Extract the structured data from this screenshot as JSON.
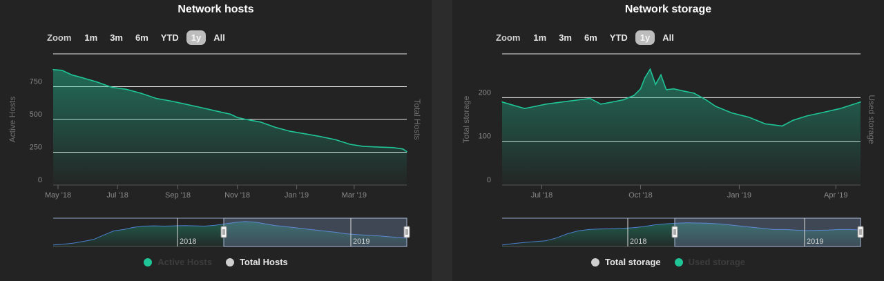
{
  "colors": {
    "accent": "#1fc497",
    "background": "#232323",
    "gridline": "#e8e8e8",
    "axis_text": "#8a8a8a",
    "navigator_line": "#4a7fd0",
    "hidden_legend": "#3c3c3c",
    "total_dot": "#cfcfcf"
  },
  "zoom": {
    "label": "Zoom",
    "buttons": [
      "1m",
      "3m",
      "6m",
      "YTD",
      "1y",
      "All"
    ],
    "active": "1y"
  },
  "hosts_panel": {
    "title": "Network hosts",
    "legend": [
      {
        "label": "Active Hosts",
        "color": "#1fc497",
        "visible": false
      },
      {
        "label": "Total Hosts",
        "color": "#cfcfcf",
        "visible": true
      }
    ],
    "navigator_labels": [
      "2018",
      "2019"
    ]
  },
  "storage_panel": {
    "title": "Network storage",
    "legend": [
      {
        "label": "Total storage",
        "color": "#cfcfcf",
        "visible": true
      },
      {
        "label": "Used storage",
        "color": "#1fc497",
        "visible": false
      }
    ],
    "navigator_labels": [
      "2018",
      "2019"
    ]
  },
  "chart_data": [
    {
      "type": "area",
      "title": "Network hosts",
      "ylabel_left": "Active Hosts",
      "ylabel_right": "Total Hosts",
      "ylim": [
        0,
        1000
      ],
      "yticks": [
        0,
        250,
        500,
        750
      ],
      "xlim": [
        "2018-04-26",
        "2019-04-24"
      ],
      "xticks": [
        {
          "date": "2018-05-01",
          "label": "May '18"
        },
        {
          "date": "2018-07-01",
          "label": "Jul '18"
        },
        {
          "date": "2018-09-01",
          "label": "Sep '18"
        },
        {
          "date": "2018-11-01",
          "label": "Nov '18"
        },
        {
          "date": "2019-01-01",
          "label": "Jan '19"
        },
        {
          "date": "2019-03-01",
          "label": "Mar '19"
        }
      ],
      "series": [
        {
          "name": "Active Hosts",
          "x": [
            "2018-04-26",
            "2018-05-05",
            "2018-05-15",
            "2018-05-25",
            "2018-06-10",
            "2018-06-25",
            "2018-07-10",
            "2018-07-25",
            "2018-08-10",
            "2018-08-25",
            "2018-09-10",
            "2018-09-25",
            "2018-10-10",
            "2018-10-25",
            "2018-11-01",
            "2018-11-10",
            "2018-11-25",
            "2018-12-10",
            "2018-12-25",
            "2019-01-10",
            "2019-01-25",
            "2019-02-10",
            "2019-02-25",
            "2019-03-10",
            "2019-03-25",
            "2019-04-10",
            "2019-04-20",
            "2019-04-24"
          ],
          "values": [
            880,
            875,
            840,
            820,
            785,
            745,
            730,
            700,
            660,
            640,
            615,
            590,
            565,
            540,
            515,
            500,
            480,
            440,
            410,
            390,
            370,
            345,
            310,
            295,
            290,
            285,
            275,
            255
          ]
        }
      ]
    },
    {
      "type": "area",
      "title": "Network storage",
      "ylabel_left": "Total storage",
      "ylabel_right": "Used storage",
      "ylim": [
        0,
        300
      ],
      "yticks": [
        0,
        100,
        200
      ],
      "xlim": [
        "2018-05-25",
        "2019-04-24"
      ],
      "xticks": [
        {
          "date": "2018-07-01",
          "label": "Jul '18"
        },
        {
          "date": "2018-10-01",
          "label": "Oct '18"
        },
        {
          "date": "2019-01-01",
          "label": "Jan '19"
        },
        {
          "date": "2019-04-01",
          "label": "Apr '19"
        }
      ],
      "series": [
        {
          "name": "Used storage",
          "x": [
            "2018-05-25",
            "2018-06-05",
            "2018-06-15",
            "2018-06-25",
            "2018-07-05",
            "2018-07-20",
            "2018-08-05",
            "2018-08-15",
            "2018-08-25",
            "2018-09-05",
            "2018-09-15",
            "2018-09-25",
            "2018-10-01",
            "2018-10-05",
            "2018-10-10",
            "2018-10-15",
            "2018-10-20",
            "2018-10-25",
            "2018-11-01",
            "2018-11-10",
            "2018-11-20",
            "2018-12-01",
            "2018-12-10",
            "2018-12-25",
            "2019-01-10",
            "2019-01-25",
            "2019-02-10",
            "2019-02-20",
            "2019-03-05",
            "2019-03-20",
            "2019-04-05",
            "2019-04-24"
          ],
          "values": [
            190,
            182,
            175,
            180,
            185,
            190,
            195,
            198,
            185,
            190,
            195,
            205,
            220,
            245,
            265,
            230,
            252,
            218,
            220,
            215,
            210,
            195,
            180,
            165,
            155,
            140,
            135,
            148,
            158,
            166,
            175,
            190
          ]
        }
      ]
    }
  ]
}
